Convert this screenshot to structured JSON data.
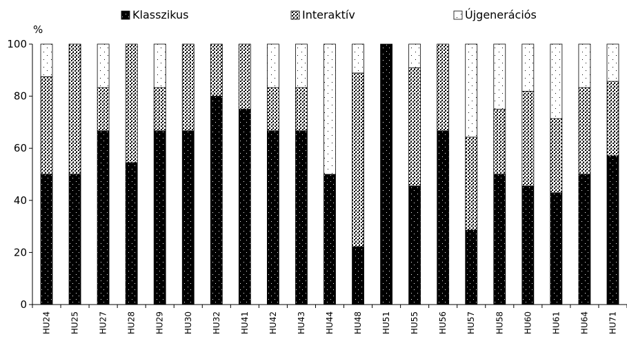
{
  "chart_data": {
    "type": "bar",
    "stacked": true,
    "ylabel": "%",
    "ylim": [
      0,
      100
    ],
    "yticks": [
      0,
      20,
      40,
      60,
      80,
      100
    ],
    "grid": false,
    "legend_position": "top",
    "categories": [
      "HU24",
      "HU25",
      "HU27",
      "HU28",
      "HU29",
      "HU30",
      "HU32",
      "HU41",
      "HU42",
      "HU43",
      "HU44",
      "HU48",
      "HU51",
      "HU55",
      "HU56",
      "HU57",
      "HU58",
      "HU60",
      "HU61",
      "HU64",
      "HU71"
    ],
    "series": [
      {
        "name": "Klasszikus",
        "pattern": "dense-black",
        "values": [
          50,
          50,
          66.7,
          54.5,
          66.7,
          66.7,
          80,
          75,
          66.7,
          66.7,
          50,
          22.2,
          100,
          45.5,
          66.7,
          28.6,
          50,
          45.5,
          42.9,
          50,
          57.1
        ]
      },
      {
        "name": "Interaktív",
        "pattern": "dotted-grey",
        "values": [
          37.5,
          50,
          16.6,
          45.5,
          16.6,
          33.3,
          20,
          25,
          16.6,
          16.6,
          0,
          66.7,
          0,
          45.4,
          33.3,
          35.7,
          25,
          36.4,
          28.5,
          33.3,
          28.6
        ]
      },
      {
        "name": "Újgenerációs",
        "pattern": "sparse-dots",
        "values": [
          12.5,
          0,
          16.7,
          0,
          16.7,
          0,
          0,
          0,
          16.7,
          16.7,
          50,
          11.1,
          0,
          9.1,
          0,
          35.7,
          25,
          18.1,
          28.6,
          16.7,
          14.3
        ]
      }
    ],
    "colors": {
      "axis": "#000000",
      "bar_outline": "#000000",
      "background": "#ffffff"
    }
  }
}
